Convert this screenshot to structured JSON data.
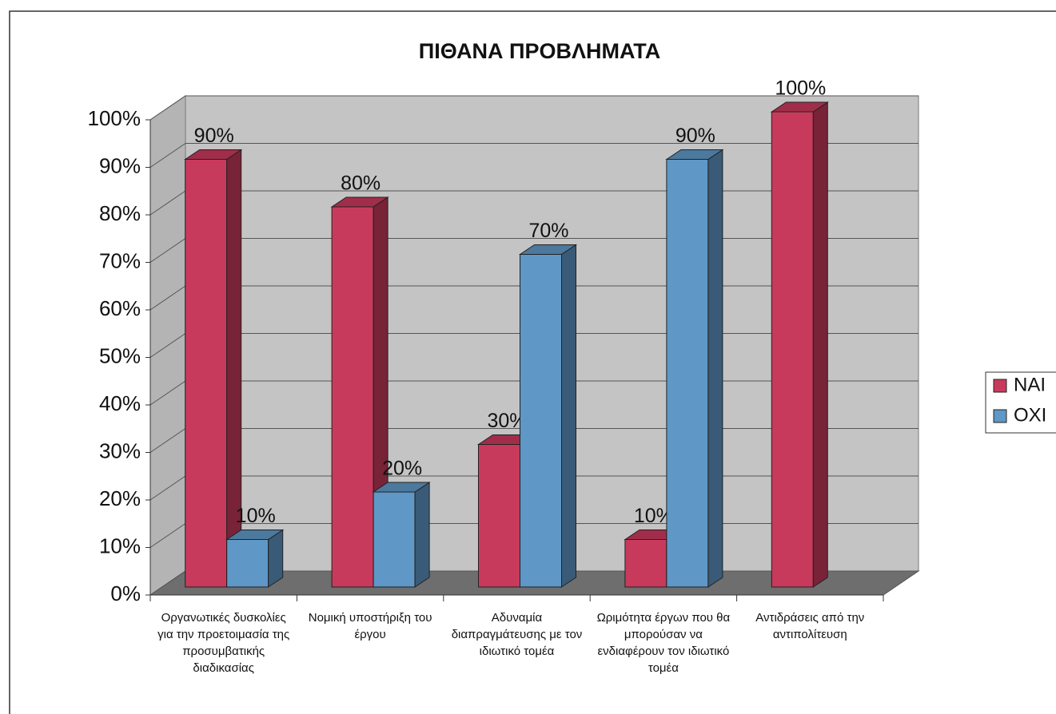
{
  "chart_data": {
    "type": "bar3d",
    "title": "ΠΙΘΑΝΑ ΠΡΟΒΛΗΜΑΤΑ",
    "categories": [
      "Οργανωτικές δυσκολίες για την προετοιμασία της προσυμβατικής διαδικασίας",
      "Νομική υποστήριξη του έργου",
      "Αδυναμία διαπραγμάτευσης με τον ιδιωτικό τομέα",
      "Ωριμότητα έργων που θα μπορούσαν να ενδιαφέρουν τον ιδιωτικό τομέα",
      "Αντιδράσεις από την αντιπολίτευση"
    ],
    "series": [
      {
        "name": "ΝΑΙ",
        "color": "#c83a5c",
        "values": [
          90,
          80,
          30,
          10,
          100
        ],
        "value_labels": [
          "90%",
          "80%",
          "30%",
          "10%",
          "100%"
        ]
      },
      {
        "name": "ΟΧΙ",
        "color": "#5f97c6",
        "values": [
          10,
          20,
          70,
          90,
          null
        ],
        "value_labels": [
          "10%",
          "20%",
          "70%",
          "90%",
          null
        ]
      }
    ],
    "ylim": [
      0,
      100
    ],
    "yticks": [
      {
        "value": 0,
        "label": "0%"
      },
      {
        "value": 10,
        "label": "10%"
      },
      {
        "value": 20,
        "label": "20%"
      },
      {
        "value": 30,
        "label": "30%"
      },
      {
        "value": 40,
        "label": "40%"
      },
      {
        "value": 50,
        "label": "50%"
      },
      {
        "value": 60,
        "label": "60%"
      },
      {
        "value": 70,
        "label": "70%"
      },
      {
        "value": 80,
        "label": "80%"
      },
      {
        "value": 90,
        "label": "90%"
      },
      {
        "value": 100,
        "label": "100%"
      }
    ],
    "grid": true,
    "legend": "right"
  }
}
